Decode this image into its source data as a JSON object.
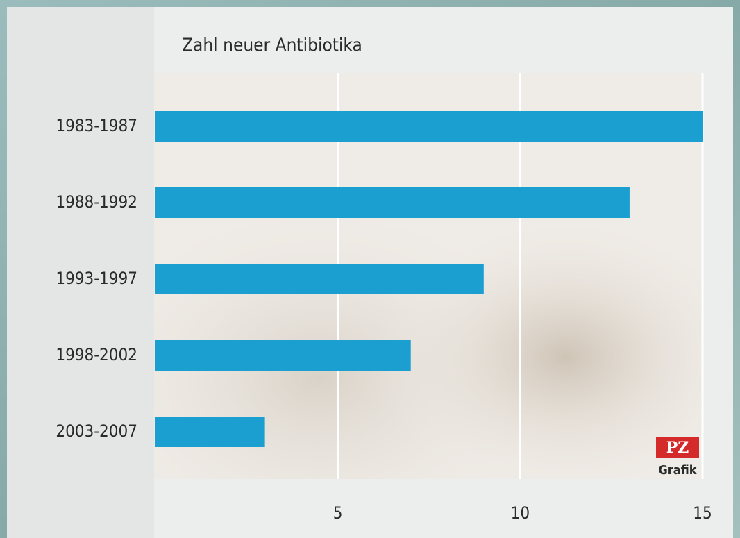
{
  "chart_data": {
    "type": "bar",
    "orientation": "horizontal",
    "title": "Zahl neuer Antibiotika",
    "categories": [
      "1983-1987",
      "1988-1992",
      "1993-1997",
      "1998-2002",
      "2003-2007"
    ],
    "values": [
      15,
      13,
      9,
      7,
      3
    ],
    "color": "#1b9ed0",
    "xlim": [
      0,
      15
    ],
    "xticks": [
      5,
      10,
      15
    ],
    "grid": true,
    "logo": [
      "PZ",
      "Grafik"
    ]
  }
}
